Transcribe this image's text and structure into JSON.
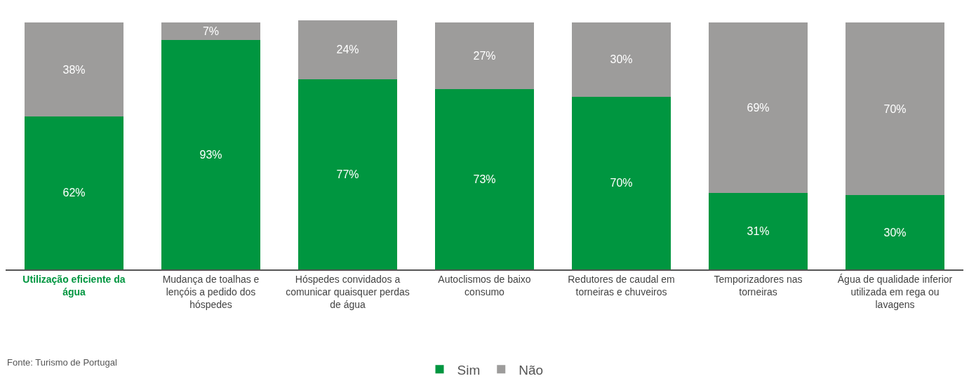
{
  "chart_data": {
    "type": "bar",
    "stacked": true,
    "categories": [
      "Utilização eficiente da água",
      "Mudança de toalhas e lençóis a pedido dos hóspedes",
      "Hóspedes convidados a comunicar quaisquer perdas de água",
      "Autoclismos de baixo consumo",
      "Redutores de caudal em torneiras e chuveiros",
      "Temporizadores nas torneiras",
      "Água de qualidade inferior utilizada em rega ou lavagens"
    ],
    "series": [
      {
        "name": "Sim",
        "color": "#009640",
        "values": [
          62,
          93,
          77,
          73,
          70,
          31,
          30
        ],
        "value_labels": [
          "62%",
          "93%",
          "77%",
          "73%",
          "70%",
          "31%",
          "30%"
        ]
      },
      {
        "name": "Não",
        "color": "#9d9c9b",
        "values": [
          38,
          7,
          24,
          27,
          30,
          69,
          70
        ],
        "value_labels": [
          "38%",
          "7%",
          "24%",
          "27%",
          "30%",
          "69%",
          "70%"
        ]
      }
    ],
    "tick_labels": "x",
    "legend": "bottom",
    "annotations": [
      "Fonte: Turismo de Portugal"
    ]
  }
}
